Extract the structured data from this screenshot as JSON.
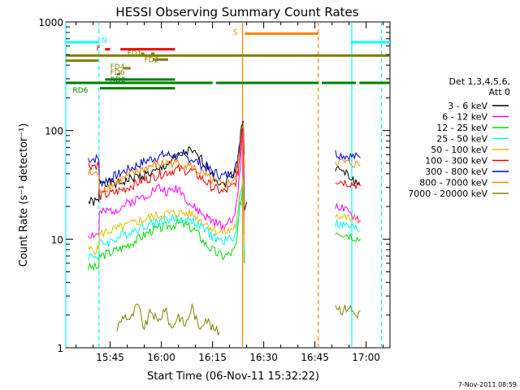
{
  "chart_data": {
    "type": "line",
    "title": "HESSI Observing Summary Count Rates",
    "xlabel": "Start Time (06-Nov-11 15:32:22)",
    "ylabel": "Count Rate (s⁻¹ detector⁻¹)",
    "yscale": "log",
    "ylim": [
      1,
      1000
    ],
    "xlim_minutes": [
      -13,
      82
    ],
    "x_ticks": [
      {
        "label": "15:45",
        "t": 0
      },
      {
        "label": "16:00",
        "t": 15
      },
      {
        "label": "16:15",
        "t": 30
      },
      {
        "label": "16:30",
        "t": 45
      },
      {
        "label": "16:45",
        "t": 60
      },
      {
        "label": "17:00",
        "t": 75
      }
    ],
    "y_ticks": [
      {
        "label": "1000",
        "v": 1000
      },
      {
        "label": "100",
        "v": 100
      },
      {
        "label": "10",
        "v": 10
      },
      {
        "label": "1",
        "v": 1
      }
    ],
    "legend_header": [
      "Det 1,3,4,5,6,",
      "Att 0"
    ],
    "legend_position": "right",
    "series": [
      {
        "name": "3 - 6 keV",
        "color": "#000000",
        "points": [
          [
            -6.4,
            22
          ],
          [
            -3.3,
            22
          ],
          [
            -3.2,
            35
          ],
          [
            2,
            32
          ],
          [
            8,
            38
          ],
          [
            14,
            42
          ],
          [
            17,
            50
          ],
          [
            20,
            58
          ],
          [
            23,
            65
          ],
          [
            26,
            57
          ],
          [
            29,
            45
          ],
          [
            31,
            36
          ],
          [
            33,
            31
          ],
          [
            35,
            38
          ],
          [
            36.5,
            42
          ],
          [
            37,
            45
          ],
          [
            37.5,
            60
          ],
          [
            38,
            80
          ],
          [
            38.5,
            110
          ],
          [
            39,
            125
          ],
          [
            39.3,
            20
          ],
          [
            40,
            22
          ]
        ],
        "points2": [
          [
            66,
            45
          ],
          [
            68,
            42
          ],
          [
            70,
            38
          ],
          [
            72,
            33
          ],
          [
            73.3,
            31
          ]
        ]
      },
      {
        "name": "6 - 12 keV",
        "color": "#ff00ff",
        "points": [
          [
            -6.4,
            11
          ],
          [
            -3.3,
            11
          ],
          [
            -3.2,
            17
          ],
          [
            2,
            19
          ],
          [
            6,
            22
          ],
          [
            10,
            25
          ],
          [
            14,
            30
          ],
          [
            17,
            27
          ],
          [
            20,
            30
          ],
          [
            24,
            20
          ],
          [
            28,
            16
          ],
          [
            31,
            14
          ],
          [
            33,
            13
          ],
          [
            35,
            15
          ],
          [
            36.5,
            17
          ],
          [
            37,
            20
          ],
          [
            37.5,
            28
          ],
          [
            38,
            45
          ],
          [
            38.5,
            70
          ],
          [
            39,
            95
          ],
          [
            39.3,
            11
          ]
        ],
        "points2": [
          [
            66,
            21
          ],
          [
            68,
            19
          ],
          [
            70,
            17
          ],
          [
            72,
            16
          ],
          [
            73.3,
            15
          ]
        ]
      },
      {
        "name": "12 - 25 keV",
        "color": "#00dd00",
        "points": [
          [
            -6.4,
            5.5
          ],
          [
            -3.3,
            5.5
          ],
          [
            -3.2,
            7
          ],
          [
            0,
            7.5
          ],
          [
            4,
            8.5
          ],
          [
            8,
            10
          ],
          [
            12,
            12
          ],
          [
            16,
            13
          ],
          [
            20,
            14
          ],
          [
            22,
            13.5
          ],
          [
            25,
            12
          ],
          [
            28,
            9
          ],
          [
            31,
            7.5
          ],
          [
            33,
            7
          ],
          [
            35,
            7.3
          ],
          [
            36.5,
            8
          ],
          [
            37,
            9
          ],
          [
            37.5,
            13
          ],
          [
            38,
            20
          ],
          [
            39,
            30
          ],
          [
            39.3,
            6
          ]
        ],
        "points2": [
          [
            66,
            12
          ],
          [
            68,
            11.5
          ],
          [
            70,
            11
          ],
          [
            72,
            10.5
          ],
          [
            73.3,
            10
          ]
        ]
      },
      {
        "name": "25 - 50 keV",
        "color": "#00ffff",
        "points": [
          [
            -6.4,
            7
          ],
          [
            -3.3,
            7
          ],
          [
            -3.2,
            9
          ],
          [
            0,
            9.5
          ],
          [
            4,
            11
          ],
          [
            8,
            12.5
          ],
          [
            12,
            14
          ],
          [
            16,
            15
          ],
          [
            20,
            15.5
          ],
          [
            24,
            15
          ],
          [
            28,
            12
          ],
          [
            31,
            10
          ],
          [
            33,
            9.5
          ],
          [
            35,
            10
          ],
          [
            36.5,
            11
          ],
          [
            37,
            12
          ],
          [
            37.5,
            16
          ],
          [
            38,
            24
          ],
          [
            39,
            35
          ],
          [
            39.3,
            8
          ]
        ],
        "points2": [
          [
            66,
            14
          ],
          [
            68,
            13.5
          ],
          [
            70,
            13
          ],
          [
            72,
            12.5
          ],
          [
            73.3,
            12
          ]
        ]
      },
      {
        "name": "50 - 100 keV",
        "color": "#e0c000",
        "points": [
          [
            -6.4,
            8
          ],
          [
            -3.3,
            8
          ],
          [
            -3.2,
            11
          ],
          [
            0,
            12
          ],
          [
            4,
            13
          ],
          [
            8,
            14.5
          ],
          [
            12,
            16
          ],
          [
            16,
            17
          ],
          [
            20,
            17.5
          ],
          [
            24,
            17
          ],
          [
            28,
            14
          ],
          [
            31,
            12
          ],
          [
            33,
            11.5
          ],
          [
            35,
            12
          ],
          [
            36.5,
            13
          ],
          [
            37,
            14
          ],
          [
            37.5,
            18
          ],
          [
            38,
            26
          ],
          [
            39,
            38
          ],
          [
            39.3,
            9
          ]
        ],
        "points2": [
          [
            66,
            17
          ],
          [
            68,
            16
          ],
          [
            70,
            15.5
          ],
          [
            72,
            15
          ],
          [
            73.3,
            14.5
          ]
        ]
      },
      {
        "name": "100 - 300 keV",
        "color": "#ee0000",
        "points": [
          [
            -6.4,
            48
          ],
          [
            -3.3,
            48
          ],
          [
            -3.2,
            25
          ],
          [
            0,
            26
          ],
          [
            4,
            29
          ],
          [
            8,
            33
          ],
          [
            12,
            37
          ],
          [
            16,
            41
          ],
          [
            20,
            44
          ],
          [
            24,
            42
          ],
          [
            27,
            36
          ],
          [
            30,
            30
          ],
          [
            33,
            27
          ],
          [
            35,
            29
          ],
          [
            36.5,
            32
          ],
          [
            37,
            35
          ],
          [
            37.5,
            42
          ],
          [
            38,
            60
          ],
          [
            38.5,
            90
          ],
          [
            39,
            120
          ],
          [
            39.3,
            45
          ]
        ],
        "points2": [
          [
            66,
            35
          ],
          [
            68,
            34
          ],
          [
            70,
            33
          ],
          [
            72,
            32
          ],
          [
            73.3,
            31
          ]
        ]
      },
      {
        "name": "300 - 800 keV",
        "color": "#0000cc",
        "points": [
          [
            -6.4,
            55
          ],
          [
            -3.3,
            55
          ],
          [
            -3.2,
            33
          ],
          [
            0,
            36
          ],
          [
            4,
            42
          ],
          [
            8,
            48
          ],
          [
            12,
            55
          ],
          [
            16,
            60
          ],
          [
            20,
            58
          ],
          [
            24,
            55
          ],
          [
            27,
            48
          ],
          [
            30,
            42
          ],
          [
            33,
            38
          ],
          [
            35,
            40
          ],
          [
            36.5,
            44
          ],
          [
            37,
            48
          ],
          [
            37.5,
            60
          ],
          [
            38,
            80
          ],
          [
            38.5,
            100
          ],
          [
            39,
            130
          ],
          [
            39.3,
            60
          ]
        ],
        "points2": [
          [
            66,
            62
          ],
          [
            68,
            60
          ],
          [
            70,
            58
          ],
          [
            72,
            57
          ],
          [
            73.3,
            56
          ]
        ]
      },
      {
        "name": "800 - 7000 keV",
        "color": "#ff8000",
        "points": [
          [
            -6.4,
            40
          ],
          [
            -3.3,
            40
          ],
          [
            -3.2,
            28
          ],
          [
            0,
            31
          ],
          [
            4,
            36
          ],
          [
            8,
            42
          ],
          [
            12,
            47
          ],
          [
            16,
            50
          ],
          [
            20,
            50
          ],
          [
            24,
            46
          ],
          [
            27,
            40
          ],
          [
            30,
            34
          ],
          [
            33,
            31
          ],
          [
            35,
            33
          ],
          [
            36.5,
            37
          ],
          [
            37,
            41
          ],
          [
            37.5,
            50
          ],
          [
            38,
            70
          ],
          [
            38.5,
            95
          ],
          [
            39,
            125
          ],
          [
            39.3,
            45
          ]
        ],
        "points2": [
          [
            66,
            52
          ],
          [
            68,
            51
          ],
          [
            70,
            50
          ],
          [
            72,
            49
          ],
          [
            73.3,
            48
          ]
        ]
      },
      {
        "name": "7000 - 20000 keV",
        "color": "#808000",
        "points": [
          [
            2,
            1.5
          ],
          [
            4,
            2
          ],
          [
            6,
            1.8
          ],
          [
            8,
            2.5
          ],
          [
            10,
            1.5
          ],
          [
            12,
            2.2
          ],
          [
            14,
            1.7
          ],
          [
            16,
            2.3
          ],
          [
            18,
            1.5
          ],
          [
            20,
            2
          ],
          [
            22,
            1.6
          ],
          [
            24,
            2.4
          ],
          [
            26,
            1.5
          ],
          [
            28,
            1.9
          ],
          [
            30,
            1.5
          ],
          [
            32,
            1.4
          ]
        ],
        "points2": [
          [
            66,
            2.5
          ],
          [
            68,
            2.2
          ],
          [
            70,
            2.4
          ],
          [
            72,
            2
          ],
          [
            73.3,
            2.2
          ]
        ]
      }
    ],
    "state_bars": [
      {
        "label": "N",
        "color": "#00ffff",
        "level": 650,
        "segments": [
          [
            -13,
            -3.2
          ],
          [
            70.5,
            82
          ]
        ]
      },
      {
        "label": "S",
        "color": "#ff8000",
        "level": 780,
        "segments": [
          [
            39.5,
            61
          ]
        ]
      },
      {
        "label": "F",
        "color": "#ee0000",
        "level": 560,
        "segments": [
          [
            -1.5,
            0
          ],
          [
            3,
            19
          ]
        ]
      },
      {
        "label": "FD1",
        "color": "#808000",
        "level": 510,
        "segments": [
          [
            9,
            10
          ],
          [
            12,
            13
          ]
        ]
      },
      {
        "label": "FD2",
        "color": "#808000",
        "level": 450,
        "segments": [
          [
            12.5,
            17
          ]
        ]
      },
      {
        "label": "FD4",
        "color": "#808000",
        "level": 375,
        "segments": [
          [
            4,
            6
          ]
        ]
      },
      {
        "label": "FD6",
        "color": "#808000",
        "level": 330,
        "segments": [
          [
            2,
            3
          ]
        ]
      },
      {
        "label": "RD0",
        "color": "#008000",
        "level": 295,
        "segments": [
          [
            -1.5,
            19
          ]
        ]
      },
      {
        "label": "RD6",
        "color": "#008000",
        "level": 235,
        "segments": []
      }
    ],
    "long_bars": [
      {
        "color": "#808000",
        "level": 490,
        "segments": [
          [
            -13,
            82
          ]
        ]
      },
      {
        "color": "#808000",
        "level": 440,
        "segments": [
          [
            -13,
            -3.5
          ]
        ]
      },
      {
        "color": "#008000",
        "level": 275,
        "segments": [
          [
            -13,
            30
          ],
          [
            31,
            61
          ],
          [
            62,
            72
          ],
          [
            73,
            82
          ]
        ]
      },
      {
        "color": "#008000",
        "level": 245,
        "segments": [
          [
            -3,
            19
          ]
        ]
      }
    ],
    "vlines": [
      {
        "t": -13,
        "color": "#00ffff",
        "style": "solid"
      },
      {
        "t": -3.3,
        "color": "#00ffff",
        "style": "dashed"
      },
      {
        "t": 70.8,
        "color": "#00ffff",
        "style": "solid"
      },
      {
        "t": 79.5,
        "color": "#00ffff",
        "style": "dashed"
      },
      {
        "t": 38.8,
        "color": "#ff8000",
        "style": "solid"
      },
      {
        "t": 61.0,
        "color": "#ff8000",
        "style": "dashed"
      }
    ]
  },
  "footer": {
    "timestamp": "7-Nov-2011 08:59"
  }
}
